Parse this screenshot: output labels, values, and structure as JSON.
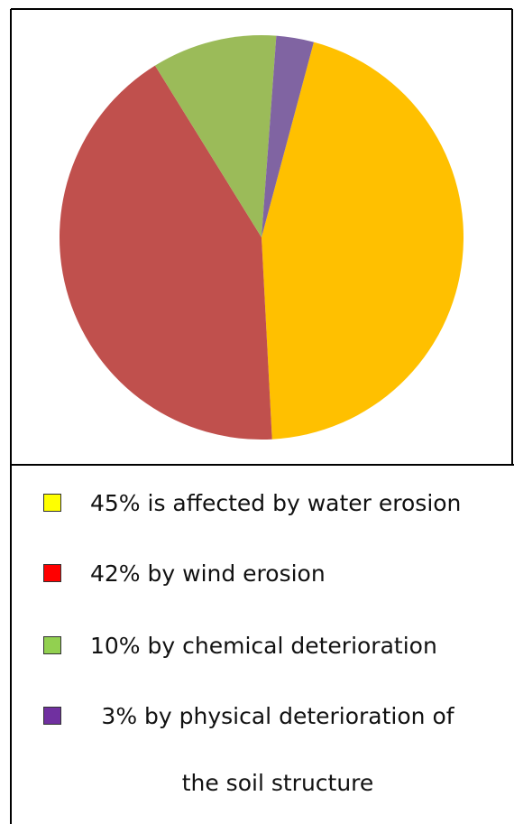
{
  "chart_data": {
    "type": "pie",
    "categories": [
      "45% is affected by water erosion",
      "42% by wind erosion",
      "10% by chemical deterioration",
      "3% by physical deterioration of the soil structure"
    ],
    "values": [
      45,
      42,
      10,
      3
    ],
    "colors": [
      "#ffc000",
      "#c0504d",
      "#9bbb59",
      "#8064a2"
    ],
    "legend_colors": [
      "#ffff00",
      "#ff0000",
      "#92d050",
      "#7030a0"
    ]
  }
}
